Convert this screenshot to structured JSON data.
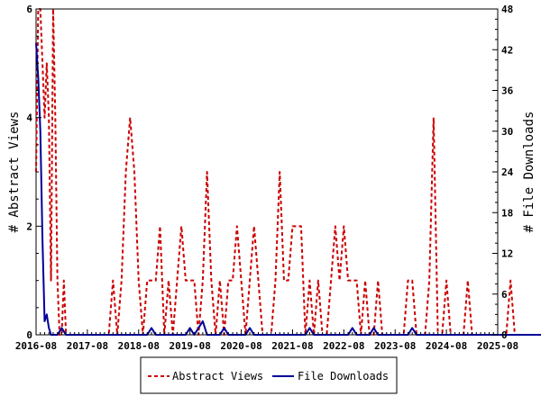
{
  "chart_data": {
    "type": "line",
    "title": "",
    "ylabel_left": "# Abstract Views",
    "ylabel_right": "# File Downloads",
    "x_ticks": [
      "2016-08",
      "2017-08",
      "2018-08",
      "2019-08",
      "2020-08",
      "2021-08",
      "2022-08",
      "2023-08",
      "2024-08",
      "2025-08"
    ],
    "x_range": [
      "2016-08",
      "2025-08"
    ],
    "y_left_ticks": [
      "0",
      "2",
      "4",
      "6"
    ],
    "y_left_range": [
      0,
      6
    ],
    "y_right_ticks": [
      "0",
      "6",
      "12",
      "18",
      "24",
      "30",
      "36",
      "42",
      "48"
    ],
    "y_right_range": [
      0,
      48
    ],
    "grid": false,
    "legend_position": "bottom",
    "x_unit": "months since 2016-08",
    "series": [
      {
        "name": "Abstract Views",
        "axis": "left",
        "color": "#cc0000",
        "style": "dashed",
        "points": [
          [
            0,
            3
          ],
          [
            0.5,
            6
          ],
          [
            1,
            6
          ],
          [
            1.5,
            5
          ],
          [
            2,
            4
          ],
          [
            2.5,
            5
          ],
          [
            3,
            4
          ],
          [
            3.5,
            1
          ],
          [
            4,
            6
          ],
          [
            4.5,
            4
          ],
          [
            5,
            1
          ],
          [
            5.5,
            0
          ],
          [
            6,
            0
          ],
          [
            6.5,
            1
          ],
          [
            7,
            0
          ],
          [
            8,
            0
          ],
          [
            9,
            0
          ],
          [
            10,
            0
          ],
          [
            11,
            0
          ],
          [
            12,
            0
          ],
          [
            13,
            0
          ],
          [
            14,
            0
          ],
          [
            15,
            0
          ],
          [
            16,
            0
          ],
          [
            17,
            0
          ],
          [
            18,
            1
          ],
          [
            19,
            0
          ],
          [
            20,
            1
          ],
          [
            21,
            3
          ],
          [
            22,
            4
          ],
          [
            23,
            3
          ],
          [
            24,
            1
          ],
          [
            25,
            0
          ],
          [
            26,
            1
          ],
          [
            27,
            1
          ],
          [
            28,
            1
          ],
          [
            29,
            2
          ],
          [
            30,
            0
          ],
          [
            31,
            1
          ],
          [
            32,
            0
          ],
          [
            33,
            1
          ],
          [
            34,
            2
          ],
          [
            35,
            1
          ],
          [
            36,
            1
          ],
          [
            37,
            1
          ],
          [
            38,
            0
          ],
          [
            39,
            1
          ],
          [
            40,
            3
          ],
          [
            41,
            1
          ],
          [
            42,
            0
          ],
          [
            43,
            1
          ],
          [
            44,
            0
          ],
          [
            45,
            1
          ],
          [
            46,
            1
          ],
          [
            47,
            2
          ],
          [
            48,
            1
          ],
          [
            49,
            0
          ],
          [
            50,
            1
          ],
          [
            51,
            2
          ],
          [
            52,
            1
          ],
          [
            53,
            0
          ],
          [
            54,
            0
          ],
          [
            55,
            0
          ],
          [
            56,
            1
          ],
          [
            57,
            3
          ],
          [
            58,
            1
          ],
          [
            59,
            1
          ],
          [
            60,
            2
          ],
          [
            61,
            2
          ],
          [
            62,
            2
          ],
          [
            63,
            0
          ],
          [
            64,
            1
          ],
          [
            65,
            0
          ],
          [
            66,
            1
          ],
          [
            67,
            0
          ],
          [
            68,
            0
          ],
          [
            69,
            1
          ],
          [
            70,
            2
          ],
          [
            71,
            1
          ],
          [
            72,
            2
          ],
          [
            73,
            1
          ],
          [
            74,
            1
          ],
          [
            75,
            1
          ],
          [
            76,
            0
          ],
          [
            77,
            1
          ],
          [
            78,
            0
          ],
          [
            79,
            0
          ],
          [
            80,
            1
          ],
          [
            81,
            0
          ],
          [
            82,
            0
          ],
          [
            83,
            0
          ],
          [
            84,
            0
          ],
          [
            85,
            0
          ],
          [
            86,
            0
          ],
          [
            87,
            1
          ],
          [
            88,
            1
          ],
          [
            89,
            0
          ],
          [
            90,
            0
          ],
          [
            91,
            0
          ],
          [
            92,
            1
          ],
          [
            93,
            4
          ],
          [
            94,
            0
          ],
          [
            95,
            0
          ],
          [
            96,
            1
          ],
          [
            97,
            0
          ],
          [
            98,
            0
          ],
          [
            99,
            0
          ],
          [
            100,
            0
          ],
          [
            101,
            1
          ],
          [
            102,
            0
          ],
          [
            103,
            0
          ],
          [
            104,
            0
          ],
          [
            105,
            0
          ],
          [
            106,
            0
          ],
          [
            107,
            0
          ],
          [
            108,
            0
          ],
          [
            109,
            0
          ],
          [
            110,
            0
          ],
          [
            111,
            1
          ],
          [
            112,
            0
          ],
          [
            113,
            0
          ],
          [
            114,
            0
          ],
          [
            115,
            0
          ],
          [
            116,
            0
          ],
          [
            117,
            0
          ],
          [
            118,
            0
          ],
          [
            119,
            0
          ],
          [
            120,
            0
          ],
          [
            121,
            0
          ],
          [
            122,
            0
          ],
          [
            123,
            0
          ],
          [
            124,
            0
          ],
          [
            125,
            0
          ],
          [
            126,
            0
          ],
          [
            127,
            0
          ],
          [
            128,
            0
          ],
          [
            129,
            0
          ],
          [
            130,
            0
          ],
          [
            131,
            1
          ],
          [
            132,
            1
          ],
          [
            133,
            0
          ],
          [
            134,
            0
          ],
          [
            135,
            0
          ],
          [
            136,
            0
          ],
          [
            137,
            0
          ],
          [
            138,
            0
          ],
          [
            139,
            0
          ],
          [
            140,
            0
          ],
          [
            141,
            0
          ],
          [
            142,
            0
          ],
          [
            143,
            0
          ]
        ]
      },
      {
        "name": "File Downloads",
        "axis": "right",
        "color": "#000099",
        "style": "solid",
        "points": [
          [
            0,
            43
          ],
          [
            0.5,
            38
          ],
          [
            1,
            30
          ],
          [
            1.5,
            14
          ],
          [
            2,
            2
          ],
          [
            2.5,
            3
          ],
          [
            3,
            1
          ],
          [
            3.5,
            0
          ],
          [
            4,
            0
          ],
          [
            5,
            0
          ],
          [
            6,
            1
          ],
          [
            7,
            0
          ],
          [
            8,
            0
          ],
          [
            9,
            0
          ],
          [
            10,
            0
          ],
          [
            11,
            0
          ],
          [
            12,
            0
          ],
          [
            13,
            0
          ],
          [
            14,
            0
          ],
          [
            15,
            0
          ],
          [
            16,
            0
          ],
          [
            17,
            0
          ],
          [
            18,
            0
          ],
          [
            19,
            0
          ],
          [
            20,
            0
          ],
          [
            21,
            0
          ],
          [
            22,
            0
          ],
          [
            23,
            0
          ],
          [
            24,
            0
          ],
          [
            25,
            0
          ],
          [
            26,
            0
          ],
          [
            27,
            1
          ],
          [
            28,
            0
          ],
          [
            29,
            0
          ],
          [
            30,
            0
          ],
          [
            31,
            0
          ],
          [
            32,
            0
          ],
          [
            33,
            0
          ],
          [
            34,
            0
          ],
          [
            35,
            0
          ],
          [
            36,
            1
          ],
          [
            37,
            0
          ],
          [
            38,
            1
          ],
          [
            39,
            2
          ],
          [
            40,
            0
          ],
          [
            41,
            0
          ],
          [
            42,
            0
          ],
          [
            43,
            0
          ],
          [
            44,
            1
          ],
          [
            45,
            0
          ],
          [
            46,
            0
          ],
          [
            47,
            0
          ],
          [
            48,
            0
          ],
          [
            49,
            0
          ],
          [
            50,
            1
          ],
          [
            51,
            0
          ],
          [
            52,
            0
          ],
          [
            53,
            0
          ],
          [
            54,
            0
          ],
          [
            55,
            0
          ],
          [
            56,
            0
          ],
          [
            57,
            0
          ],
          [
            58,
            0
          ],
          [
            59,
            0
          ],
          [
            60,
            0
          ],
          [
            61,
            0
          ],
          [
            62,
            0
          ],
          [
            63,
            0
          ],
          [
            64,
            1
          ],
          [
            65,
            0
          ],
          [
            66,
            0
          ],
          [
            67,
            0
          ],
          [
            68,
            0
          ],
          [
            69,
            0
          ],
          [
            70,
            0
          ],
          [
            71,
            0
          ],
          [
            72,
            0
          ],
          [
            73,
            0
          ],
          [
            74,
            1
          ],
          [
            75,
            0
          ],
          [
            76,
            0
          ],
          [
            77,
            0
          ],
          [
            78,
            0
          ],
          [
            79,
            1
          ],
          [
            80,
            0
          ],
          [
            81,
            0
          ],
          [
            82,
            0
          ],
          [
            83,
            0
          ],
          [
            84,
            0
          ],
          [
            85,
            0
          ],
          [
            86,
            0
          ],
          [
            87,
            0
          ],
          [
            88,
            1
          ],
          [
            89,
            0
          ],
          [
            90,
            0
          ],
          [
            91,
            0
          ],
          [
            92,
            0
          ],
          [
            93,
            0
          ],
          [
            94,
            0
          ],
          [
            95,
            0
          ],
          [
            96,
            0
          ],
          [
            97,
            0
          ],
          [
            98,
            0
          ],
          [
            99,
            0
          ],
          [
            100,
            0
          ],
          [
            101,
            0
          ],
          [
            102,
            0
          ],
          [
            103,
            0
          ],
          [
            104,
            0
          ],
          [
            105,
            0
          ],
          [
            106,
            0
          ],
          [
            107,
            0
          ],
          [
            108,
            0
          ],
          [
            109,
            0
          ],
          [
            110,
            0
          ],
          [
            111,
            0
          ],
          [
            112,
            0
          ],
          [
            113,
            0
          ],
          [
            114,
            0
          ],
          [
            115,
            0
          ],
          [
            116,
            0
          ],
          [
            117,
            0
          ],
          [
            118,
            0
          ],
          [
            119,
            0
          ],
          [
            120,
            0
          ],
          [
            121,
            0
          ],
          [
            122,
            0
          ],
          [
            123,
            0
          ],
          [
            124,
            0
          ],
          [
            125,
            0
          ],
          [
            126,
            0
          ],
          [
            127,
            0
          ],
          [
            128,
            0
          ],
          [
            129,
            0
          ],
          [
            130,
            0
          ],
          [
            131,
            0
          ],
          [
            132,
            0
          ],
          [
            133,
            0
          ],
          [
            134,
            0
          ],
          [
            135,
            0
          ],
          [
            136,
            0
          ],
          [
            137,
            0
          ],
          [
            138,
            0
          ],
          [
            139,
            0
          ],
          [
            140,
            0
          ],
          [
            141,
            0
          ],
          [
            142,
            0
          ],
          [
            143,
            0
          ]
        ]
      }
    ]
  }
}
